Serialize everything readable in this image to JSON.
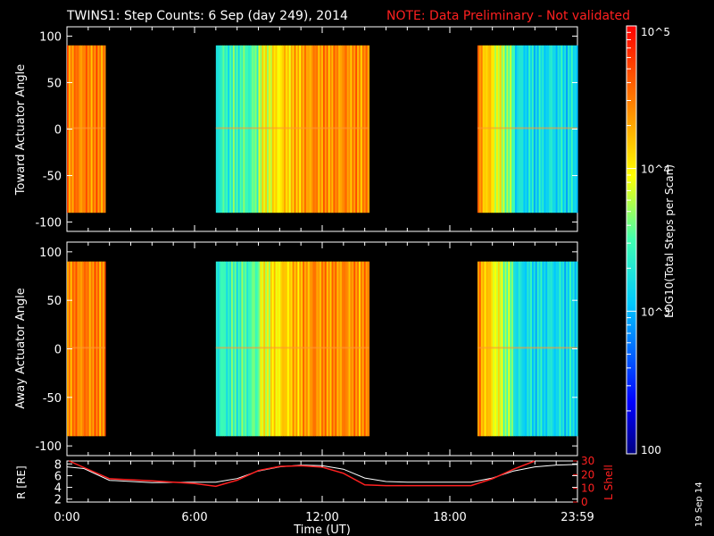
{
  "title": {
    "main": "TWINS1: Step Counts:  6 Sep (day 249), 2014",
    "note": "NOTE: Data Preliminary - Not validated"
  },
  "colorbar": {
    "label": "LOG10(Total Steps per Scan)",
    "ticks": [
      "10^5",
      "10^4",
      "10^3",
      "100"
    ],
    "min": 100,
    "max": 100000
  },
  "stamp": "19 Sep 14",
  "chart_data": [
    {
      "type": "heatmap",
      "title": "",
      "ylabel": "Toward Actuator Angle",
      "ylim": [
        -110,
        110
      ],
      "yticks": [
        "100",
        "50",
        "0",
        "-50",
        "-100"
      ],
      "xlim_hours": [
        0,
        24
      ],
      "data_intervals_hours": [
        [
          0,
          1.8
        ],
        [
          7.0,
          14.2
        ],
        [
          19.3,
          24
        ]
      ],
      "angle_range": [
        -90,
        90
      ]
    },
    {
      "type": "heatmap",
      "title": "",
      "ylabel": "Away Actuator Angle",
      "ylim": [
        -110,
        110
      ],
      "yticks": [
        "100",
        "50",
        "0",
        "-50",
        "-100"
      ],
      "xlim_hours": [
        0,
        24
      ],
      "data_intervals_hours": [
        [
          0,
          1.8
        ],
        [
          7.0,
          14.2
        ],
        [
          19.3,
          24
        ]
      ],
      "angle_range": [
        -90,
        90
      ]
    },
    {
      "type": "line",
      "ylabel_left": "R [RE]",
      "ylabel_right": "L Shell",
      "yticks_left": [
        "8",
        "6",
        "4",
        "2"
      ],
      "yticks_right": [
        "30",
        "20",
        "10",
        "0"
      ],
      "ylim_left": [
        1.5,
        8.5
      ],
      "ylim_right": [
        0,
        30
      ],
      "xlabel": "Time (UT)",
      "xticks": [
        "0:00",
        "6:00",
        "12:00",
        "18:00",
        "23:59"
      ],
      "series": [
        {
          "name": "R [RE]",
          "color": "#ffffff",
          "x": [
            0,
            0.8,
            2,
            4,
            6,
            7,
            8,
            9,
            10,
            11,
            12,
            13,
            14,
            15,
            16,
            17,
            19,
            20,
            21,
            22,
            23,
            24
          ],
          "y": [
            7.5,
            7.2,
            5.2,
            4.8,
            4.9,
            4.9,
            5.5,
            6.8,
            7.5,
            7.8,
            7.7,
            7.1,
            5.6,
            5.0,
            4.9,
            4.9,
            4.9,
            5.6,
            6.8,
            7.5,
            7.8,
            7.9
          ]
        },
        {
          "name": "L Shell",
          "color": "#ff2020",
          "x": [
            0.1,
            2,
            4,
            6,
            7,
            8,
            9,
            10,
            11,
            12,
            13,
            14,
            15,
            16,
            17,
            19,
            20,
            21,
            22
          ],
          "y": [
            30,
            17,
            15.5,
            13.5,
            11.5,
            16,
            23,
            26,
            26.5,
            25.5,
            21,
            12.5,
            12,
            12,
            12,
            12,
            17,
            24,
            30
          ]
        }
      ]
    }
  ]
}
